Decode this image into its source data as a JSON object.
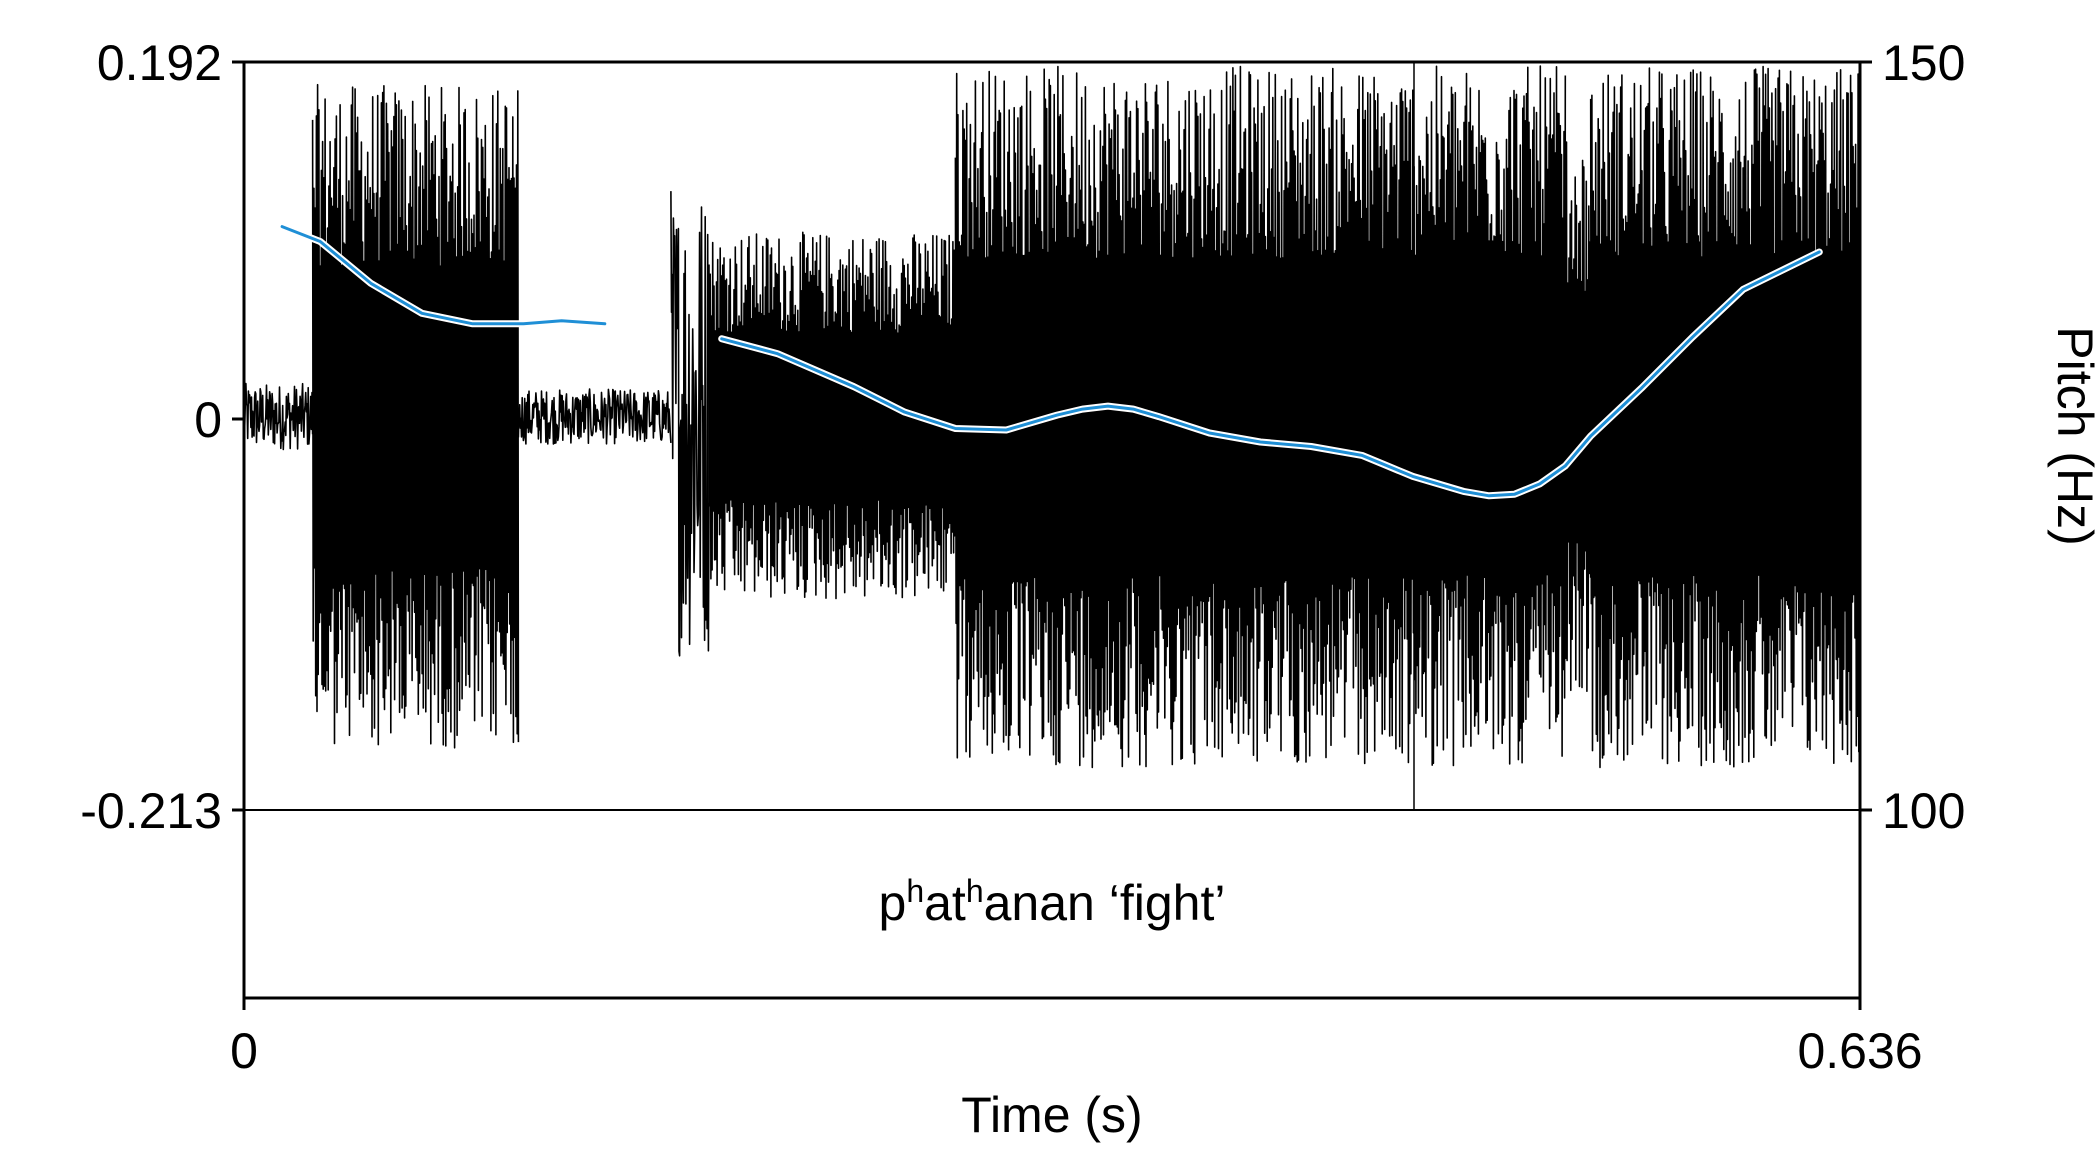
{
  "chart_data": {
    "type": "line",
    "title": "",
    "xlabel": "Time (s)",
    "ylabel_right": "Pitch (Hz)",
    "xlim": [
      0,
      0.636
    ],
    "x_tick_labels": [
      "0",
      "0.636"
    ],
    "ylim_amplitude": [
      -0.213,
      0.192
    ],
    "y_left_tick_labels": [
      "0.192",
      "0",
      "-0.213"
    ],
    "ylim_pitch": [
      100,
      150
    ],
    "y_right_tick_labels": [
      "150",
      "100"
    ],
    "grid": false,
    "legend": "none",
    "annotation": {
      "base1": "p",
      "sup1": "h",
      "base2": "at",
      "sup2": "h",
      "rest": "anan ‘fight’"
    },
    "series": [
      {
        "kind": "waveform",
        "color": "#000000",
        "segments": [
          {
            "start": 0.0,
            "end": 0.027,
            "peak": 0.018,
            "periodic": false
          },
          {
            "start": 0.027,
            "end": 0.108,
            "peak": 0.18,
            "periodic": true
          },
          {
            "start": 0.108,
            "end": 0.168,
            "peak": 0.015,
            "periodic": false
          },
          {
            "start": 0.168,
            "end": 0.183,
            "peak": 0.13,
            "periodic": false
          },
          {
            "start": 0.183,
            "end": 0.28,
            "peak": 0.1,
            "periodic": true
          },
          {
            "start": 0.28,
            "end": 0.52,
            "peak": 0.19,
            "periodic": true
          },
          {
            "start": 0.52,
            "end": 0.53,
            "peak": 0.15,
            "periodic": true
          },
          {
            "start": 0.53,
            "end": 0.636,
            "peak": 0.19,
            "periodic": true
          }
        ]
      },
      {
        "kind": "pitch",
        "color": "#1f8fd6",
        "segments": [
          {
            "x": [
              0.015,
              0.03,
              0.05,
              0.07,
              0.09,
              0.11,
              0.125,
              0.142
            ],
            "y": [
              139.0,
              138.0,
              135.2,
              133.2,
              132.5,
              132.5,
              132.7,
              132.5
            ]
          },
          {
            "x": [
              0.188,
              0.21,
              0.24,
              0.26,
              0.28,
              0.3,
              0.32,
              0.33,
              0.34,
              0.35,
              0.36,
              0.38,
              0.4,
              0.42,
              0.44,
              0.45,
              0.46,
              0.47,
              0.48,
              0.49,
              0.5,
              0.51,
              0.52,
              0.53,
              0.55,
              0.57,
              0.59,
              0.62
            ],
            "y": [
              131.5,
              130.5,
              128.3,
              126.6,
              125.5,
              125.4,
              126.4,
              126.8,
              127.0,
              126.8,
              126.3,
              125.2,
              124.6,
              124.3,
              123.7,
              123.0,
              122.3,
              121.8,
              121.3,
              121.0,
              121.1,
              121.8,
              123.0,
              125.0,
              128.2,
              131.6,
              134.8,
              137.3
            ]
          }
        ]
      }
    ]
  }
}
